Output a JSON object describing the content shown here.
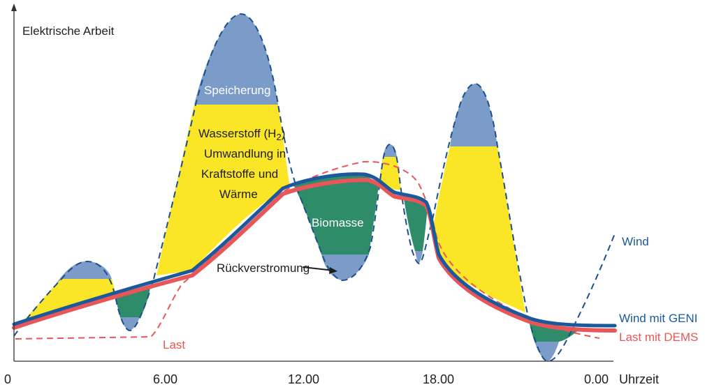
{
  "y_axis_label": "Elektrische Arbeit",
  "x_axis_label": "Uhrzeit",
  "x_ticks": [
    "0",
    "6.00",
    "12.00",
    "18.00",
    "0.00"
  ],
  "areas": {
    "storage": "Speicherung",
    "hydrogen_line1": "Wasserstoff (H",
    "hydrogen_sub": "2",
    "hydrogen_line1_end": ")",
    "hydrogen_line2": "Umwandlung in",
    "hydrogen_line3": "Kraftstoffe und",
    "hydrogen_line4": "Wärme",
    "biomass": "Biomasse",
    "reconversion": "Rückverstromung"
  },
  "curves": {
    "wind": "Wind",
    "wind_geni": "Wind mit GENI",
    "load": "Last",
    "load_dems": "Last mit DEMS"
  },
  "colors": {
    "storage_blue": "#7b9cc9",
    "hydrogen_yellow": "#fbe527",
    "biomass_green": "#2e8c6a",
    "wind_line": "#1c4f8c",
    "geni_line": "#1a5a9c",
    "dems_line": "#e8565a",
    "load_line": "#e8565a"
  }
}
